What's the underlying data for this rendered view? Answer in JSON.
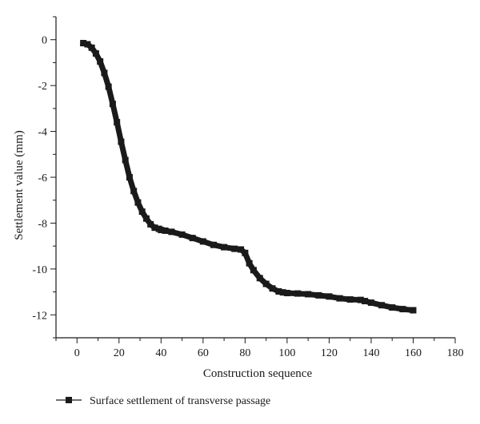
{
  "chart_data": {
    "type": "line",
    "title": "",
    "xlabel": "Construction sequence",
    "ylabel": "Settlement value (mm)",
    "xlim": [
      -10,
      180
    ],
    "ylim": [
      -13,
      1
    ],
    "xticks": [
      0,
      20,
      40,
      60,
      80,
      100,
      120,
      140,
      160,
      180
    ],
    "yticks": [
      0,
      -2,
      -4,
      -6,
      -8,
      -10,
      -12
    ],
    "grid": false,
    "legend_position": "bottom-left",
    "series": [
      {
        "name": "Surface settlement of transverse passage",
        "color": "#1a1a1a",
        "marker": "square",
        "x": [
          3,
          5,
          7,
          9,
          11,
          13,
          15,
          17,
          19,
          21,
          23,
          25,
          27,
          29,
          31,
          33,
          35,
          37,
          39,
          40,
          42,
          45,
          50,
          55,
          60,
          65,
          70,
          75,
          78,
          80,
          82,
          84,
          87,
          90,
          93,
          96,
          98,
          100,
          105,
          110,
          115,
          120,
          125,
          130,
          135,
          137,
          140,
          145,
          150,
          155,
          160
        ],
        "y": [
          -0.15,
          -0.2,
          -0.35,
          -0.6,
          -0.95,
          -1.45,
          -2.05,
          -2.8,
          -3.6,
          -4.45,
          -5.25,
          -6.0,
          -6.6,
          -7.1,
          -7.5,
          -7.8,
          -8.05,
          -8.2,
          -8.25,
          -8.3,
          -8.33,
          -8.38,
          -8.5,
          -8.65,
          -8.8,
          -8.95,
          -9.05,
          -9.12,
          -9.15,
          -9.3,
          -9.75,
          -10.05,
          -10.4,
          -10.65,
          -10.85,
          -10.98,
          -11.02,
          -11.05,
          -11.07,
          -11.1,
          -11.15,
          -11.2,
          -11.28,
          -11.33,
          -11.35,
          -11.4,
          -11.47,
          -11.58,
          -11.68,
          -11.75,
          -11.8
        ]
      }
    ]
  }
}
